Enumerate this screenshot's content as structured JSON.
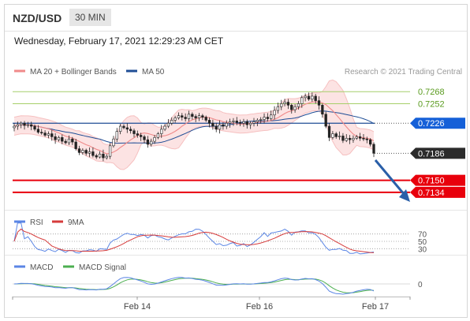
{
  "header": {
    "pair": "NZD/USD",
    "timeframe": "30 MIN"
  },
  "datetime": "Wednesday, February 17, 2021 12:29:23 AM CET",
  "legend": {
    "ma20": "MA 20 + Bollinger Bands",
    "ma50": "MA 50",
    "credit": "Research © 2021 Trading Central"
  },
  "colors": {
    "ma20": "#f08a8a",
    "ma50": "#1f4e96",
    "resistance": "#a6cf6a",
    "support": "#e8000c",
    "badge_blue": "#1560d8",
    "badge_dark": "#2b2b2b",
    "arrow": "#2a5fa8",
    "rsi": "#5b86e5",
    "rsi_ma": "#d63b3b",
    "macd": "#5b86e5",
    "macd_signal": "#4caf50"
  },
  "chart_data": [
    {
      "type": "line",
      "name": "price",
      "ylim": [
        0.7115,
        0.7285
      ],
      "x_ticks": [
        "Feb 14",
        "Feb 16",
        "Feb 17"
      ],
      "close": [
        0.7222,
        0.7224,
        0.7226,
        0.7223,
        0.7224,
        0.7222,
        0.7218,
        0.7214,
        0.7213,
        0.721,
        0.7212,
        0.7208,
        0.7204,
        0.7207,
        0.7202,
        0.72,
        0.7205,
        0.7201,
        0.7192,
        0.7187,
        0.719,
        0.7186,
        0.7188,
        0.7183,
        0.7181,
        0.7185,
        0.718,
        0.7182,
        0.7196,
        0.7205,
        0.7215,
        0.7222,
        0.722,
        0.7218,
        0.7216,
        0.7212,
        0.721,
        0.7208,
        0.7204,
        0.7198,
        0.7202,
        0.7207,
        0.7212,
        0.7218,
        0.7222,
        0.7226,
        0.723,
        0.7233,
        0.7236,
        0.7234,
        0.7232,
        0.7238,
        0.7235,
        0.7233,
        0.7236,
        0.7234,
        0.723,
        0.7226,
        0.7222,
        0.7218,
        0.7224,
        0.7222,
        0.7226,
        0.7228,
        0.7229,
        0.7227,
        0.7226,
        0.7228,
        0.7224,
        0.7226,
        0.7228,
        0.723,
        0.7231,
        0.7234,
        0.7232,
        0.7237,
        0.7243,
        0.7248,
        0.7252,
        0.7254,
        0.725,
        0.7244,
        0.7248,
        0.7252,
        0.726,
        0.7262,
        0.7258,
        0.7262,
        0.7256,
        0.725,
        0.7238,
        0.7222,
        0.7207,
        0.7212,
        0.7208,
        0.7209,
        0.7203,
        0.7206,
        0.7204,
        0.7206,
        0.7208,
        0.7206,
        0.7205,
        0.7204,
        0.7198,
        0.7186
      ],
      "horizontal_levels": [
        {
          "label": "0.7268",
          "value": 0.7268,
          "kind": "resistance"
        },
        {
          "label": "0.7252",
          "value": 0.7252,
          "kind": "resistance"
        },
        {
          "label": "0.7226",
          "value": 0.7226,
          "kind": "pivot"
        },
        {
          "label": "0.7186",
          "value": 0.7186,
          "kind": "last"
        },
        {
          "label": "0.7150",
          "value": 0.715,
          "kind": "support"
        },
        {
          "label": "0.7134",
          "value": 0.7134,
          "kind": "support"
        }
      ],
      "series": [
        {
          "name": "MA 20 + Bollinger Bands"
        },
        {
          "name": "MA 50"
        }
      ],
      "legend": "top-left"
    },
    {
      "type": "line",
      "name": "rsi_panel",
      "ylim": [
        20,
        80
      ],
      "levels": [
        {
          "label": "70",
          "value": 70
        },
        {
          "label": "50",
          "value": 50
        },
        {
          "label": "30",
          "value": 30
        }
      ],
      "series": [
        {
          "name": "RSI"
        },
        {
          "name": "9MA"
        }
      ]
    },
    {
      "type": "line",
      "name": "macd_panel",
      "levels": [
        {
          "label": "0",
          "value": 0
        }
      ],
      "series": [
        {
          "name": "MACD"
        },
        {
          "name": "MACD Signal"
        }
      ]
    }
  ]
}
